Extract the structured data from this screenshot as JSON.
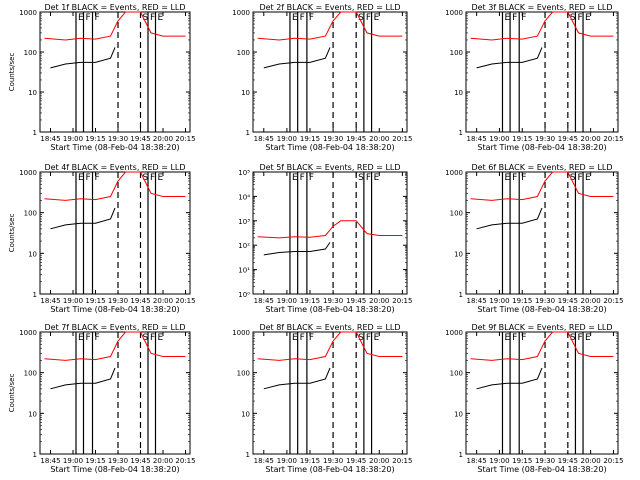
{
  "figure": {
    "colors": {
      "events": "#000000",
      "lld": "#ff0000",
      "axes": "#000000"
    }
  },
  "chart_data": [
    {
      "type": "line",
      "panel": 1,
      "title": "Det 1f BLACK = Events, RED = LLD",
      "xlabel": "Start Time (08-Feb-04 18:38:20)",
      "ylabel": "Counts/sec",
      "y_scale": "log",
      "ylim": [
        1,
        1000
      ],
      "y_ticks": [
        "1",
        "10",
        "100",
        "1000"
      ],
      "x_ticks": [
        "18:45",
        "19:00",
        "19:15",
        "19:30",
        "19:45",
        "20:00",
        "20:15"
      ],
      "xlim": [
        "18:38",
        "20:18"
      ],
      "markers": [
        {
          "x": "19:02",
          "label": "E",
          "style": "solid"
        },
        {
          "x": "19:07",
          "label": "F",
          "style": "solid"
        },
        {
          "x": "19:13",
          "label": "F",
          "style": "solid"
        },
        {
          "x": "19:30",
          "label": "",
          "style": "dashed"
        },
        {
          "x": "19:45",
          "label": "S",
          "style": "dashed"
        },
        {
          "x": "19:50",
          "label": "F",
          "style": "solid"
        },
        {
          "x": "19:55",
          "label": "E",
          "style": "solid"
        }
      ],
      "series": [
        {
          "name": "Events",
          "x": [
            "18:45",
            "18:55",
            "19:05",
            "19:15",
            "19:25",
            "19:28"
          ],
          "y": [
            40,
            50,
            55,
            55,
            70,
            130
          ]
        },
        {
          "name": "LLD",
          "x": [
            "18:41",
            "18:55",
            "19:05",
            "19:15",
            "19:25",
            "19:30",
            "19:35",
            "19:45",
            "19:52",
            "20:00",
            "20:15"
          ],
          "y": [
            220,
            200,
            220,
            210,
            250,
            600,
            1000,
            1000,
            300,
            250,
            250
          ]
        }
      ]
    },
    {
      "type": "line",
      "panel": 2,
      "title": "Det 2f BLACK = Events, RED = LLD",
      "xlabel": "Start Time (08-Feb-04 18:38:20)",
      "ylabel": "",
      "y_scale": "log",
      "ylim": [
        1,
        1000
      ],
      "y_ticks": [
        "1",
        "10",
        "100",
        "1000"
      ],
      "x_ticks": [
        "18:45",
        "19:00",
        "19:15",
        "19:30",
        "19:45",
        "20:00",
        "20:15"
      ],
      "xlim": [
        "18:38",
        "20:18"
      ],
      "markers": [
        {
          "x": "19:02",
          "label": "E",
          "style": "solid"
        },
        {
          "x": "19:07",
          "label": "F",
          "style": "solid"
        },
        {
          "x": "19:13",
          "label": "F",
          "style": "solid"
        },
        {
          "x": "19:30",
          "label": "",
          "style": "dashed"
        },
        {
          "x": "19:45",
          "label": "S",
          "style": "dashed"
        },
        {
          "x": "19:50",
          "label": "F",
          "style": "solid"
        },
        {
          "x": "19:55",
          "label": "E",
          "style": "solid"
        }
      ],
      "series": [
        {
          "name": "Events",
          "x": [
            "18:45",
            "18:55",
            "19:05",
            "19:15",
            "19:25",
            "19:28"
          ],
          "y": [
            40,
            50,
            55,
            55,
            70,
            130
          ]
        },
        {
          "name": "LLD",
          "x": [
            "18:41",
            "18:55",
            "19:05",
            "19:15",
            "19:25",
            "19:30",
            "19:35",
            "19:45",
            "19:52",
            "20:00",
            "20:15"
          ],
          "y": [
            220,
            200,
            220,
            210,
            250,
            600,
            1000,
            1000,
            300,
            250,
            250
          ]
        }
      ]
    },
    {
      "type": "line",
      "panel": 3,
      "title": "Det 3f BLACK = Events, RED = LLD",
      "xlabel": "Start Time (08-Feb-04 18:38:20)",
      "ylabel": "",
      "y_scale": "log",
      "ylim": [
        1,
        1000
      ],
      "y_ticks": [
        "1",
        "10",
        "100",
        "1000"
      ],
      "x_ticks": [
        "18:45",
        "19:00",
        "19:15",
        "19:30",
        "19:45",
        "20:00",
        "20:15"
      ],
      "xlim": [
        "18:38",
        "20:18"
      ],
      "markers": [
        {
          "x": "19:02",
          "label": "E",
          "style": "solid"
        },
        {
          "x": "19:07",
          "label": "F",
          "style": "solid"
        },
        {
          "x": "19:13",
          "label": "F",
          "style": "solid"
        },
        {
          "x": "19:30",
          "label": "",
          "style": "dashed"
        },
        {
          "x": "19:45",
          "label": "S",
          "style": "dashed"
        },
        {
          "x": "19:50",
          "label": "F",
          "style": "solid"
        },
        {
          "x": "19:55",
          "label": "E",
          "style": "solid"
        }
      ],
      "series": [
        {
          "name": "Events",
          "x": [
            "18:45",
            "18:55",
            "19:05",
            "19:15",
            "19:25",
            "19:28"
          ],
          "y": [
            40,
            50,
            55,
            55,
            70,
            130
          ]
        },
        {
          "name": "LLD",
          "x": [
            "18:41",
            "18:55",
            "19:05",
            "19:15",
            "19:25",
            "19:30",
            "19:35",
            "19:45",
            "19:52",
            "20:00",
            "20:15"
          ],
          "y": [
            220,
            200,
            220,
            210,
            250,
            600,
            1000,
            1000,
            300,
            250,
            250
          ]
        }
      ]
    },
    {
      "type": "line",
      "panel": 4,
      "title": "Det 4f BLACK = Events, RED = LLD",
      "xlabel": "Start Time (08-Feb-04 18:38:20)",
      "ylabel": "Counts/sec",
      "y_scale": "log",
      "ylim": [
        1,
        1000
      ],
      "y_ticks": [
        "1",
        "10",
        "100",
        "1000"
      ],
      "x_ticks": [
        "18:45",
        "19:00",
        "19:15",
        "19:30",
        "19:45",
        "20:00",
        "20:15"
      ],
      "xlim": [
        "18:38",
        "20:18"
      ],
      "markers": [
        {
          "x": "19:02",
          "label": "E",
          "style": "solid"
        },
        {
          "x": "19:07",
          "label": "F",
          "style": "solid"
        },
        {
          "x": "19:13",
          "label": "F",
          "style": "solid"
        },
        {
          "x": "19:30",
          "label": "",
          "style": "dashed"
        },
        {
          "x": "19:45",
          "label": "S",
          "style": "dashed"
        },
        {
          "x": "19:50",
          "label": "F",
          "style": "solid"
        },
        {
          "x": "19:55",
          "label": "E",
          "style": "solid"
        }
      ],
      "series": [
        {
          "name": "Events",
          "x": [
            "18:45",
            "18:55",
            "19:05",
            "19:15",
            "19:25",
            "19:28"
          ],
          "y": [
            40,
            50,
            55,
            55,
            70,
            130
          ]
        },
        {
          "name": "LLD",
          "x": [
            "18:41",
            "18:55",
            "19:05",
            "19:15",
            "19:25",
            "19:30",
            "19:35",
            "19:45",
            "19:52",
            "20:00",
            "20:15"
          ],
          "y": [
            220,
            200,
            220,
            210,
            250,
            600,
            1000,
            1000,
            300,
            250,
            250
          ]
        }
      ]
    },
    {
      "type": "line",
      "panel": 5,
      "title": "Det 5f BLACK = Events, RED = LLD",
      "xlabel": "Start Time (08-Feb-04 18:38:20)",
      "ylabel": "",
      "y_scale": "log",
      "ylim": [
        1,
        100000
      ],
      "y_ticks": [
        "10⁰",
        "10¹",
        "10²",
        "10³",
        "10⁴",
        "10⁵"
      ],
      "x_ticks": [
        "18:45",
        "19:00",
        "19:15",
        "19:30",
        "19:45",
        "20:00",
        "20:15"
      ],
      "xlim": [
        "18:38",
        "20:18"
      ],
      "markers": [
        {
          "x": "19:02",
          "label": "E",
          "style": "solid"
        },
        {
          "x": "19:07",
          "label": "F",
          "style": "solid"
        },
        {
          "x": "19:13",
          "label": "F",
          "style": "solid"
        },
        {
          "x": "19:30",
          "label": "",
          "style": "dashed"
        },
        {
          "x": "19:45",
          "label": "S",
          "style": "dashed"
        },
        {
          "x": "19:50",
          "label": "F",
          "style": "solid"
        },
        {
          "x": "19:55",
          "label": "E",
          "style": "solid"
        }
      ],
      "series": [
        {
          "name": "Events",
          "x": [
            "18:45",
            "18:55",
            "19:05",
            "19:15",
            "19:25",
            "19:28"
          ],
          "y": [
            40,
            50,
            55,
            55,
            70,
            130
          ]
        },
        {
          "name": "LLD",
          "x": [
            "18:41",
            "18:55",
            "19:05",
            "19:15",
            "19:25",
            "19:30",
            "19:35",
            "19:45",
            "19:52",
            "20:00",
            "20:15"
          ],
          "y": [
            220,
            200,
            220,
            210,
            250,
            600,
            1000,
            1000,
            300,
            250,
            250
          ]
        }
      ]
    },
    {
      "type": "line",
      "panel": 6,
      "title": "Det 6f BLACK = Events, RED = LLD",
      "xlabel": "Start Time (08-Feb-04 18:38:20)",
      "ylabel": "",
      "y_scale": "log",
      "ylim": [
        1,
        1000
      ],
      "y_ticks": [
        "1",
        "10",
        "100",
        "1000"
      ],
      "x_ticks": [
        "18:45",
        "19:00",
        "19:15",
        "19:30",
        "19:45",
        "20:00",
        "20:15"
      ],
      "xlim": [
        "18:38",
        "20:18"
      ],
      "markers": [
        {
          "x": "19:02",
          "label": "E",
          "style": "solid"
        },
        {
          "x": "19:07",
          "label": "F",
          "style": "solid"
        },
        {
          "x": "19:13",
          "label": "F",
          "style": "solid"
        },
        {
          "x": "19:30",
          "label": "",
          "style": "dashed"
        },
        {
          "x": "19:45",
          "label": "S",
          "style": "dashed"
        },
        {
          "x": "19:50",
          "label": "F",
          "style": "solid"
        },
        {
          "x": "19:55",
          "label": "E",
          "style": "solid"
        }
      ],
      "series": [
        {
          "name": "Events",
          "x": [
            "18:45",
            "18:55",
            "19:05",
            "19:15",
            "19:25",
            "19:28"
          ],
          "y": [
            40,
            50,
            55,
            55,
            70,
            130
          ]
        },
        {
          "name": "LLD",
          "x": [
            "18:41",
            "18:55",
            "19:05",
            "19:15",
            "19:25",
            "19:30",
            "19:35",
            "19:45",
            "19:52",
            "20:00",
            "20:15"
          ],
          "y": [
            220,
            200,
            220,
            210,
            250,
            600,
            1000,
            1000,
            300,
            250,
            250
          ]
        }
      ]
    },
    {
      "type": "line",
      "panel": 7,
      "title": "Det 7f BLACK = Events, RED = LLD",
      "xlabel": "Start Time (08-Feb-04 18:38:20)",
      "ylabel": "Counts/sec",
      "y_scale": "log",
      "ylim": [
        1,
        1000
      ],
      "y_ticks": [
        "1",
        "10",
        "100",
        "1000"
      ],
      "x_ticks": [
        "18:45",
        "19:00",
        "19:15",
        "19:30",
        "19:45",
        "20:00",
        "20:15"
      ],
      "xlim": [
        "18:38",
        "20:18"
      ],
      "markers": [
        {
          "x": "19:02",
          "label": "E",
          "style": "solid"
        },
        {
          "x": "19:07",
          "label": "F",
          "style": "solid"
        },
        {
          "x": "19:13",
          "label": "F",
          "style": "solid"
        },
        {
          "x": "19:30",
          "label": "",
          "style": "dashed"
        },
        {
          "x": "19:45",
          "label": "S",
          "style": "dashed"
        },
        {
          "x": "19:50",
          "label": "F",
          "style": "solid"
        },
        {
          "x": "19:55",
          "label": "E",
          "style": "solid"
        }
      ],
      "series": [
        {
          "name": "Events",
          "x": [
            "18:45",
            "18:55",
            "19:05",
            "19:15",
            "19:25",
            "19:28"
          ],
          "y": [
            40,
            50,
            55,
            55,
            70,
            130
          ]
        },
        {
          "name": "LLD",
          "x": [
            "18:41",
            "18:55",
            "19:05",
            "19:15",
            "19:25",
            "19:30",
            "19:35",
            "19:45",
            "19:52",
            "20:00",
            "20:15"
          ],
          "y": [
            220,
            200,
            220,
            210,
            250,
            600,
            1000,
            1000,
            300,
            250,
            250
          ]
        }
      ]
    },
    {
      "type": "line",
      "panel": 8,
      "title": "Det 8f BLACK = Events, RED = LLD",
      "xlabel": "Start Time (08-Feb-04 18:38:20)",
      "ylabel": "",
      "y_scale": "log",
      "ylim": [
        1,
        1000
      ],
      "y_ticks": [
        "1",
        "10",
        "100",
        "1000"
      ],
      "x_ticks": [
        "18:45",
        "19:00",
        "19:15",
        "19:30",
        "19:45",
        "20:00",
        "20:15"
      ],
      "xlim": [
        "18:38",
        "20:18"
      ],
      "markers": [
        {
          "x": "19:02",
          "label": "E",
          "style": "solid"
        },
        {
          "x": "19:07",
          "label": "F",
          "style": "solid"
        },
        {
          "x": "19:13",
          "label": "F",
          "style": "solid"
        },
        {
          "x": "19:30",
          "label": "",
          "style": "dashed"
        },
        {
          "x": "19:45",
          "label": "S",
          "style": "dashed"
        },
        {
          "x": "19:50",
          "label": "F",
          "style": "solid"
        },
        {
          "x": "19:55",
          "label": "E",
          "style": "solid"
        }
      ],
      "series": [
        {
          "name": "Events",
          "x": [
            "18:45",
            "18:55",
            "19:05",
            "19:15",
            "19:25",
            "19:28"
          ],
          "y": [
            40,
            50,
            55,
            55,
            70,
            130
          ]
        },
        {
          "name": "LLD",
          "x": [
            "18:41",
            "18:55",
            "19:05",
            "19:15",
            "19:25",
            "19:30",
            "19:35",
            "19:45",
            "19:52",
            "20:00",
            "20:15"
          ],
          "y": [
            220,
            200,
            220,
            210,
            250,
            600,
            1000,
            1000,
            300,
            250,
            250
          ]
        }
      ]
    },
    {
      "type": "line",
      "panel": 9,
      "title": "Det 9f BLACK = Events, RED = LLD",
      "xlabel": "Start Time (08-Feb-04 18:38:20)",
      "ylabel": "",
      "y_scale": "log",
      "ylim": [
        1,
        1000
      ],
      "y_ticks": [
        "1",
        "10",
        "100",
        "1000"
      ],
      "x_ticks": [
        "18:45",
        "19:00",
        "19:15",
        "19:30",
        "19:45",
        "20:00",
        "20:15"
      ],
      "xlim": [
        "18:38",
        "20:18"
      ],
      "markers": [
        {
          "x": "19:02",
          "label": "E",
          "style": "solid"
        },
        {
          "x": "19:07",
          "label": "F",
          "style": "solid"
        },
        {
          "x": "19:13",
          "label": "F",
          "style": "solid"
        },
        {
          "x": "19:30",
          "label": "",
          "style": "dashed"
        },
        {
          "x": "19:45",
          "label": "S",
          "style": "dashed"
        },
        {
          "x": "19:50",
          "label": "F",
          "style": "solid"
        },
        {
          "x": "19:55",
          "label": "E",
          "style": "solid"
        }
      ],
      "series": [
        {
          "name": "Events",
          "x": [
            "18:45",
            "18:55",
            "19:05",
            "19:15",
            "19:25",
            "19:28"
          ],
          "y": [
            40,
            50,
            55,
            55,
            70,
            130
          ]
        },
        {
          "name": "LLD",
          "x": [
            "18:41",
            "18:55",
            "19:05",
            "19:15",
            "19:25",
            "19:30",
            "19:35",
            "19:45",
            "19:52",
            "20:00",
            "20:15"
          ],
          "y": [
            220,
            200,
            220,
            210,
            250,
            600,
            1000,
            1000,
            300,
            250,
            250
          ]
        }
      ]
    }
  ]
}
